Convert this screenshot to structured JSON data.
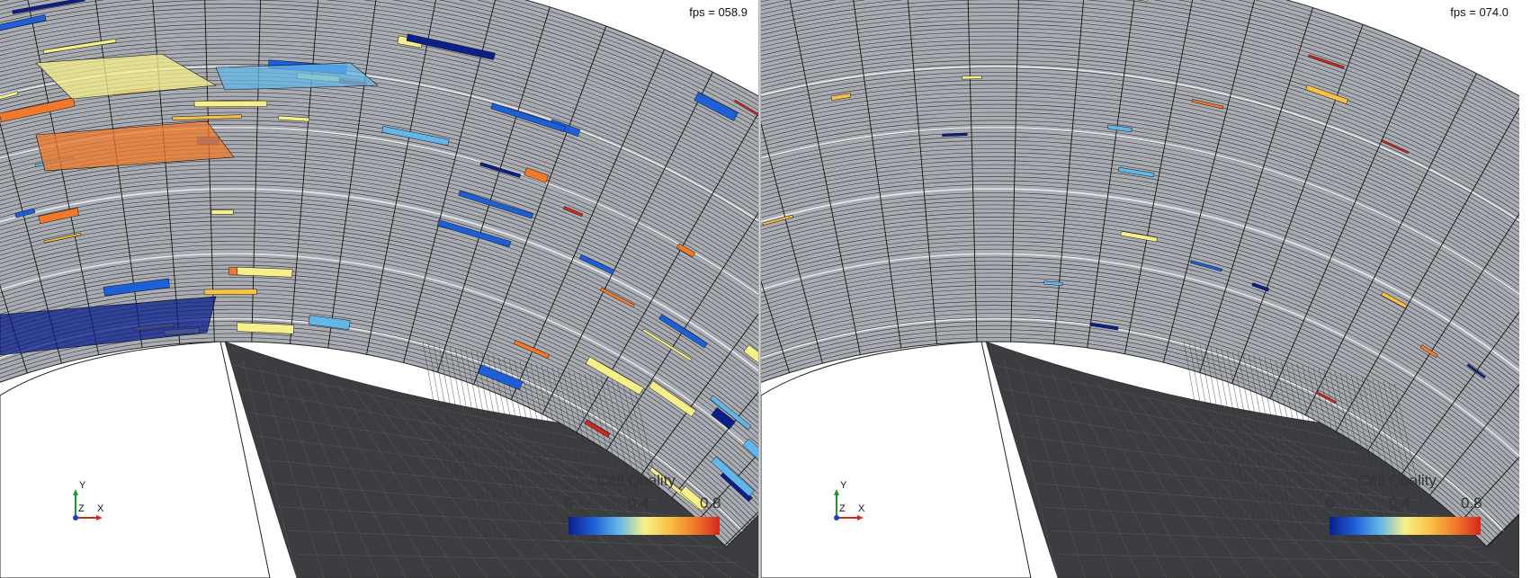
{
  "views": [
    {
      "id": "left",
      "fps_label": "fps = 058.9",
      "axes": {
        "y": "Y",
        "z": "Z",
        "x": "X"
      },
      "legend": {
        "title": "Cell Quality",
        "ticks": [
          "0",
          "0.4",
          "0.8"
        ]
      },
      "highlight_density": "high"
    },
    {
      "id": "right",
      "fps_label": "fps = 074.0",
      "axes": {
        "y": "Y",
        "z": "Z",
        "x": "X"
      },
      "legend": {
        "title": "Cell Quality",
        "ticks": [
          "0",
          "0.4",
          "0.8"
        ]
      },
      "highlight_density": "low"
    }
  ],
  "colors": {
    "mesh_face": "#a9adb3",
    "mesh_line": "#1a1a1a",
    "inner_face": "#3c3d40",
    "background": "#ffffff",
    "colormap": [
      "#0b1f8a",
      "#1d5fd8",
      "#63b7e8",
      "#f7f08a",
      "#f7c244",
      "#f2792b",
      "#d2271c"
    ]
  }
}
